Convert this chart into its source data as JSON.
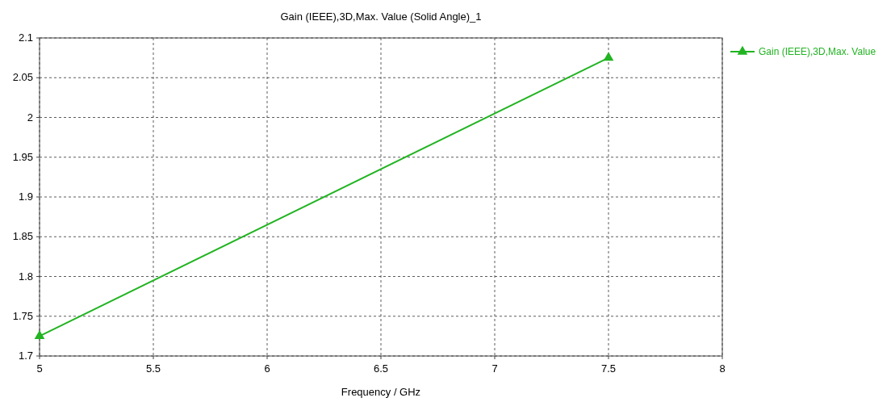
{
  "chart_data": {
    "type": "line",
    "title": "Gain (IEEE),3D,Max. Value (Solid Angle)_1",
    "xlabel": "Frequency / GHz",
    "x": [
      5,
      7.5
    ],
    "series": [
      {
        "name": "Gain (IEEE),3D,Max. Value",
        "color": "#22b422",
        "values": [
          1.725,
          2.075
        ]
      }
    ],
    "xlim": [
      5,
      8
    ],
    "xticks": [
      5,
      5.5,
      6,
      6.5,
      7,
      7.5,
      8
    ],
    "ylim": [
      1.7,
      2.1
    ],
    "yticks": [
      1.7,
      1.75,
      1.8,
      1.85,
      1.9,
      1.95,
      2,
      2.05,
      2.1
    ],
    "grid": true,
    "legend": "top right",
    "marker": "triangle",
    "line_style": "solid"
  }
}
